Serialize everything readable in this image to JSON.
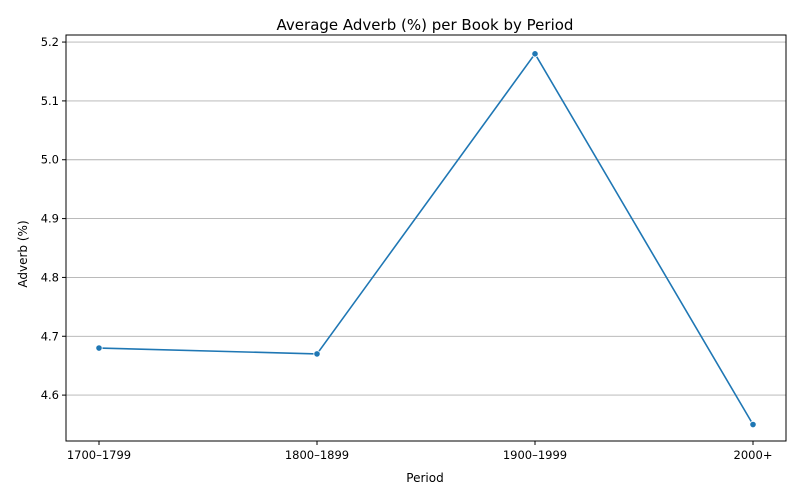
{
  "chart_data": {
    "type": "line",
    "title": "Average Adverb (%) per Book by Period",
    "xlabel": "Period",
    "ylabel": "Adverb (%)",
    "categories": [
      "1700–1799",
      "1800–1899",
      "1900–1999",
      "2000+"
    ],
    "series": [
      {
        "values": [
          4.68,
          4.67,
          5.18,
          4.55
        ],
        "color": "#1f77b4"
      }
    ],
    "ylim": [
      4.522,
      5.212
    ],
    "yticks": [
      "4.6",
      "4.7",
      "4.8",
      "4.9",
      "5.0",
      "5.1",
      "5.2"
    ],
    "grid": "y-major",
    "legend": "none"
  }
}
